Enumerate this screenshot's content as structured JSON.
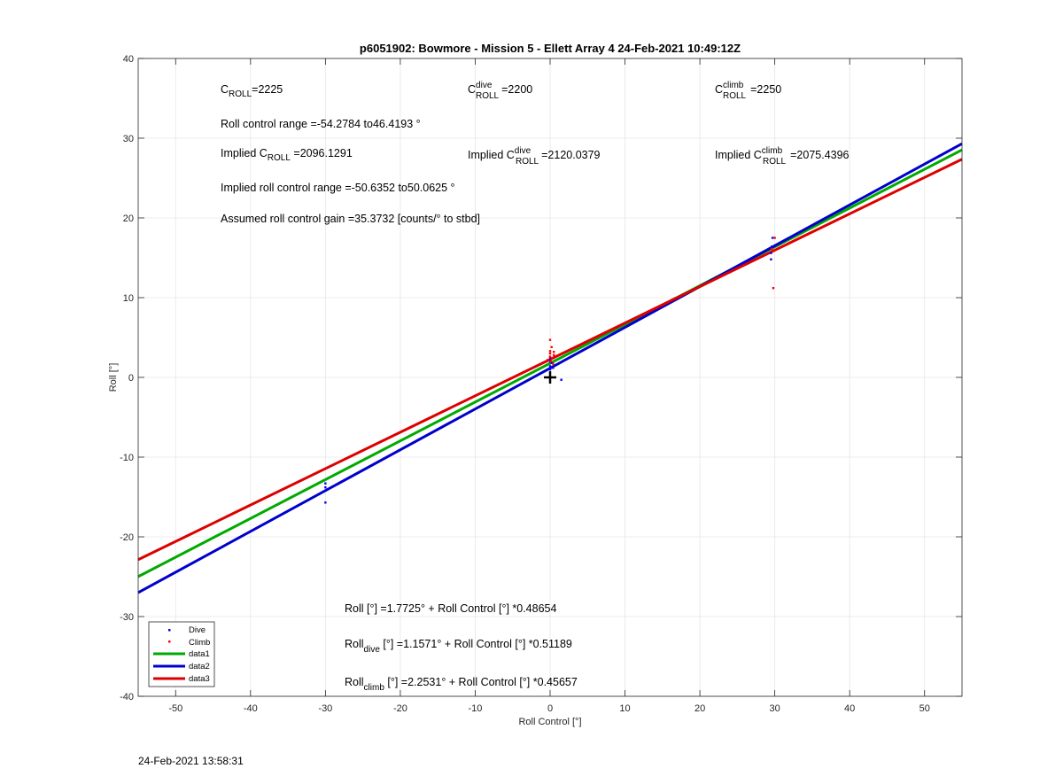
{
  "chart_data": {
    "type": "scatter",
    "title": "p6051902: Bowmore - Mission 5 - Ellett Array 4 24-Feb-2021 10:49:12Z",
    "xlabel": "Roll Control [°]",
    "ylabel": "Roll [°]",
    "xlim": [
      -55,
      55
    ],
    "ylim": [
      -40,
      40
    ],
    "xticks": [
      -50,
      -40,
      -30,
      -20,
      -10,
      0,
      10,
      20,
      30,
      40,
      50
    ],
    "yticks": [
      -40,
      -30,
      -20,
      -10,
      0,
      10,
      20,
      30,
      40
    ],
    "grid": true,
    "legend_position": "bottom-left",
    "colors": {
      "dive": "#0000ff",
      "climb": "#ff0000",
      "data1": "#00aa00",
      "data2": "#0000cc",
      "data3": "#dd0000",
      "marker": "#000000"
    },
    "series": [
      {
        "name": "Dive",
        "kind": "points",
        "x": [
          -30,
          -30,
          -30,
          0,
          0,
          0,
          0,
          0.2,
          0.4,
          1.5,
          29.5,
          29.5,
          29.6,
          29.7
        ],
        "y": [
          -13.3,
          -13.8,
          -15.7,
          1.0,
          1.4,
          2.0,
          2.4,
          1.8,
          1.2,
          -0.3,
          14.8,
          15.6,
          16.4,
          17.5
        ]
      },
      {
        "name": "Climb",
        "kind": "points",
        "x": [
          -0.3,
          0,
          0,
          0,
          0,
          0.1,
          0.2,
          0.3,
          0.4,
          0.5,
          0.5,
          29.6,
          29.8,
          30.0
        ],
        "y": [
          2.2,
          2.6,
          3.0,
          3.3,
          4.7,
          2.0,
          3.8,
          2.4,
          1.7,
          2.8,
          3.2,
          16.1,
          11.2,
          17.5
        ]
      },
      {
        "name": "data1",
        "kind": "line",
        "intercept": 1.7725,
        "slope": 0.48654
      },
      {
        "name": "data2",
        "kind": "line",
        "intercept": 1.1571,
        "slope": 0.51189
      },
      {
        "name": "data3",
        "kind": "line",
        "intercept": 2.2531,
        "slope": 0.45657
      }
    ],
    "crosshair_marker": {
      "x": 0,
      "y": 0
    },
    "annotations": {
      "c_roll": {
        "base": "C",
        "sub": "ROLL",
        "value": "=2225"
      },
      "c_roll_dive": {
        "base": "C",
        "sup": "dive",
        "sub": "ROLL",
        "value": "=2200"
      },
      "c_roll_climb": {
        "base": "C",
        "sup": "climb",
        "sub": "ROLL",
        "value": "=2250"
      },
      "roll_range": "Roll control range =-54.2784 to46.4193 °",
      "implied_c_roll": {
        "prefix": "Implied C",
        "sub": "ROLL",
        "value": " =2096.1291"
      },
      "implied_c_roll_dive": {
        "prefix": "Implied C",
        "sup": "dive",
        "sub": "ROLL",
        "value": "=2120.0379"
      },
      "implied_c_roll_climb": {
        "prefix": "Implied C",
        "sup": "climb",
        "sub": "ROLL",
        "value": "=2075.4396"
      },
      "implied_range": "Implied roll control range =-50.6352 to50.0625 °",
      "gain": "Assumed roll control gain =35.3732 [counts/° to stbd]",
      "fit_all": "Roll [°] =1.7725° + Roll Control [°] *0.48654",
      "fit_dive": {
        "prefix": "Roll",
        "sub": "dive",
        "suffix": " [°] =1.1571° + Roll Control [°] *0.51189"
      },
      "fit_climb": {
        "prefix": "Roll",
        "sub": "climb",
        "suffix": " [°] =2.2531° + Roll Control [°] *0.45657"
      }
    }
  },
  "footer_timestamp": "24-Feb-2021 13:58:31"
}
